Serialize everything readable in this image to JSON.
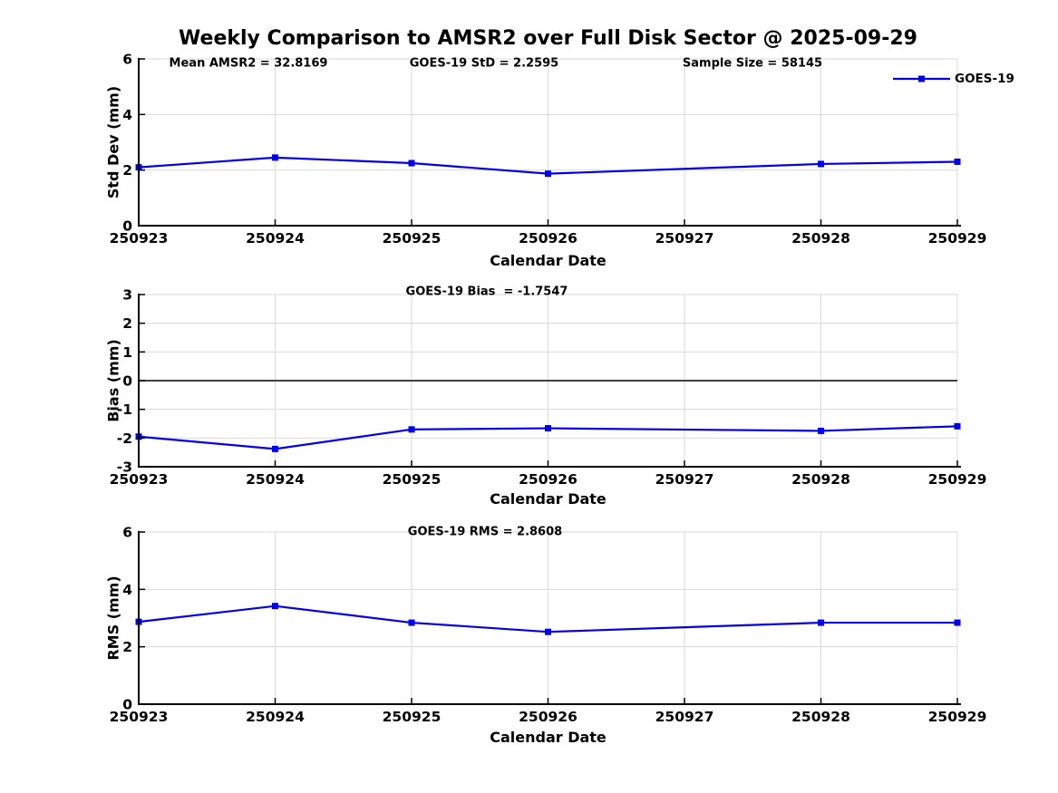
{
  "title": "Weekly Comparison to AMSR2 over Full Disk Sector @ 2025-09-29",
  "legend": {
    "label": "GOES-19",
    "position": "top-right"
  },
  "colors": {
    "line": "#0000EE",
    "grid": "#DADADA",
    "zero_line": "#3F3F3F",
    "axis": "#000000",
    "text": "#000000"
  },
  "stats": {
    "mean_amsr2": 32.8169,
    "goes19_std": 2.2595,
    "sample_size": 58145,
    "goes19_bias": -1.7547,
    "goes19_rms": 2.8608
  },
  "chart_data": [
    {
      "id": "std-dev",
      "type": "line",
      "ylabel": "Std Dev (mm)",
      "xlabel": "Calendar Date",
      "ylim": [
        0,
        6
      ],
      "yticks": [
        0,
        2,
        4,
        6
      ],
      "grid": true,
      "zero_line": false,
      "categories": [
        "250923",
        "250924",
        "250925",
        "250926",
        "250927",
        "250928",
        "250929"
      ],
      "annotations": [
        "Mean AMSR2 = 32.8169",
        "GOES-19 StD = 2.2595",
        "Sample Size = 58145"
      ],
      "series": [
        {
          "name": "GOES-19",
          "color": "#0000EE",
          "x": [
            "250923",
            "250924",
            "250925",
            "250926",
            "250928",
            "250929"
          ],
          "values": [
            2.1,
            2.45,
            2.25,
            1.87,
            2.22,
            2.3
          ]
        }
      ]
    },
    {
      "id": "bias",
      "type": "line",
      "ylabel": "Bias (mm)",
      "xlabel": "Calendar Date",
      "ylim": [
        -3,
        3
      ],
      "yticks": [
        -3,
        -2,
        -1,
        0,
        1,
        2,
        3
      ],
      "grid": true,
      "zero_line": true,
      "categories": [
        "250923",
        "250924",
        "250925",
        "250926",
        "250927",
        "250928",
        "250929"
      ],
      "annotations": [
        "GOES-19 Bias  = -1.7547"
      ],
      "series": [
        {
          "name": "GOES-19",
          "color": "#0000EE",
          "x": [
            "250923",
            "250924",
            "250925",
            "250926",
            "250928",
            "250929"
          ],
          "values": [
            -1.95,
            -2.38,
            -1.7,
            -1.66,
            -1.75,
            -1.59
          ]
        }
      ]
    },
    {
      "id": "rms",
      "type": "line",
      "ylabel": "RMS (mm)",
      "xlabel": "Calendar Date",
      "ylim": [
        0,
        6
      ],
      "yticks": [
        0,
        2,
        4,
        6
      ],
      "grid": true,
      "zero_line": false,
      "categories": [
        "250923",
        "250924",
        "250925",
        "250926",
        "250927",
        "250928",
        "250929"
      ],
      "annotations": [
        "GOES-19 RMS = 2.8608"
      ],
      "series": [
        {
          "name": "GOES-19",
          "color": "#0000EE",
          "x": [
            "250923",
            "250924",
            "250925",
            "250926",
            "250928",
            "250929"
          ],
          "values": [
            2.87,
            3.42,
            2.84,
            2.52,
            2.84,
            2.84
          ]
        }
      ]
    }
  ]
}
